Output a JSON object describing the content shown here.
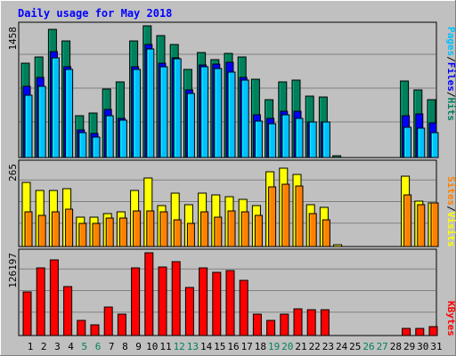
{
  "title": "Daily usage for May 2018",
  "colors": {
    "background": "#c0c0c0",
    "title": "#0000ff",
    "hits": "#00805c",
    "files": "#0000ff",
    "pages": "#00c0ff",
    "visits": "#ffff00",
    "sites": "#ff8000",
    "kbytes": "#ff0000",
    "weekend_label": "#00805c",
    "weekday_label": "#000000"
  },
  "chart_data": [
    {
      "type": "bar",
      "panel": "top",
      "max_label": "1458",
      "ylim": [
        0,
        1458
      ],
      "grid": true,
      "legend": [
        {
          "label": "Pages",
          "color": "#00c0ff"
        },
        {
          "label": "Files",
          "color": "#0000ff"
        },
        {
          "label": "Hits",
          "color": "#00805c"
        }
      ],
      "categories": [
        "1",
        "2",
        "3",
        "4",
        "5",
        "6",
        "7",
        "8",
        "9",
        "10",
        "11",
        "12",
        "13",
        "14",
        "15",
        "16",
        "17",
        "18",
        "19",
        "20",
        "21",
        "22",
        "23",
        "24",
        "25",
        "26",
        "27",
        "28",
        "29",
        "30",
        "31"
      ],
      "series": [
        {
          "name": "Hits",
          "values": [
            1045,
            1115,
            1415,
            1295,
            465,
            495,
            760,
            840,
            1290,
            1455,
            1345,
            1255,
            975,
            1165,
            1080,
            1155,
            1115,
            870,
            640,
            835,
            855,
            675,
            670,
            20,
            0,
            0,
            0,
            0,
            850,
            750,
            645
          ]
        },
        {
          "name": "Files",
          "values": [
            785,
            885,
            1175,
            1005,
            305,
            265,
            530,
            430,
            1005,
            1255,
            1045,
            1105,
            745,
            1025,
            1035,
            1055,
            885,
            470,
            430,
            510,
            515,
            395,
            395,
            0,
            0,
            0,
            0,
            0,
            460,
            480,
            385
          ]
        },
        {
          "name": "Pages",
          "values": [
            690,
            785,
            1105,
            975,
            275,
            225,
            465,
            410,
            980,
            1200,
            1000,
            1090,
            710,
            1005,
            990,
            950,
            860,
            400,
            370,
            470,
            435,
            390,
            390,
            0,
            0,
            0,
            0,
            0,
            335,
            330,
            275
          ]
        }
      ]
    },
    {
      "type": "bar",
      "panel": "middle",
      "max_label": "265",
      "ylim": [
        0,
        265
      ],
      "grid": true,
      "legend": [
        {
          "label": "Sites",
          "color": "#ff8000"
        },
        {
          "label": "Visits",
          "color": "#ffff00"
        }
      ],
      "categories": [
        "1",
        "2",
        "3",
        "4",
        "5",
        "6",
        "7",
        "8",
        "9",
        "10",
        "11",
        "12",
        "13",
        "14",
        "15",
        "16",
        "17",
        "18",
        "19",
        "20",
        "21",
        "22",
        "23",
        "24",
        "25",
        "26",
        "27",
        "28",
        "29",
        "30",
        "31"
      ],
      "series": [
        {
          "name": "Visits",
          "values": [
            205,
            180,
            180,
            185,
            95,
            95,
            105,
            110,
            180,
            220,
            130,
            170,
            135,
            170,
            165,
            160,
            150,
            130,
            240,
            250,
            230,
            135,
            125,
            5,
            0,
            0,
            0,
            0,
            225,
            145,
            140
          ]
        },
        {
          "name": "Sites",
          "values": [
            110,
            100,
            110,
            120,
            75,
            75,
            90,
            90,
            115,
            115,
            110,
            85,
            75,
            110,
            95,
            115,
            110,
            100,
            190,
            200,
            195,
            105,
            85,
            0,
            0,
            0,
            0,
            0,
            165,
            135,
            140
          ]
        }
      ]
    },
    {
      "type": "bar",
      "panel": "bottom",
      "max_label": "126197",
      "ylim": [
        0,
        126197
      ],
      "grid": true,
      "legend": [
        {
          "label": "KBytes",
          "color": "#ff0000"
        }
      ],
      "categories": [
        "1",
        "2",
        "3",
        "4",
        "5",
        "6",
        "7",
        "8",
        "9",
        "10",
        "11",
        "12",
        "13",
        "14",
        "15",
        "16",
        "17",
        "18",
        "19",
        "20",
        "21",
        "22",
        "23",
        "24",
        "25",
        "26",
        "27",
        "28",
        "29",
        "30",
        "31"
      ],
      "series": [
        {
          "name": "KBytes",
          "values": [
            67000,
            103000,
            116000,
            74000,
            23000,
            16000,
            44000,
            32000,
            103000,
            126000,
            105000,
            112000,
            73000,
            103000,
            97000,
            99000,
            84000,
            32000,
            23000,
            33000,
            41000,
            40000,
            40000,
            0,
            0,
            0,
            0,
            0,
            11000,
            11000,
            13000
          ]
        }
      ]
    }
  ],
  "weekend_days": [
    "5",
    "6",
    "12",
    "13",
    "19",
    "20",
    "26",
    "27"
  ]
}
